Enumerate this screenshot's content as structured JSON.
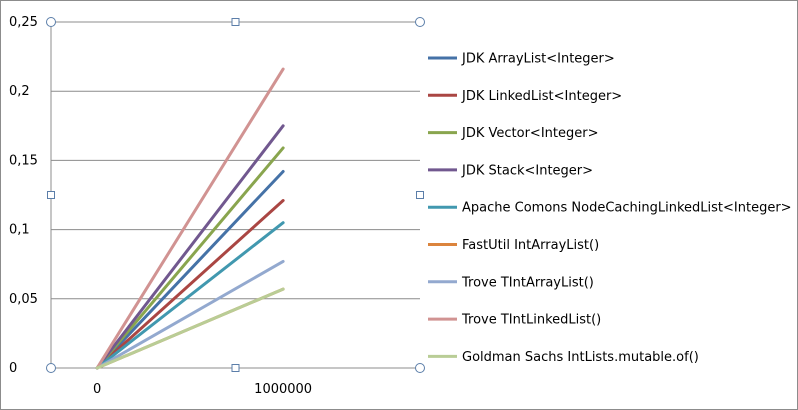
{
  "chart_data": {
    "type": "line",
    "title": "",
    "xlabel": "",
    "ylabel": "",
    "categories": [
      "0",
      "1000000"
    ],
    "ylim": [
      0,
      0.25
    ],
    "yticks": [
      0,
      0.05,
      0.1,
      0.15,
      0.2,
      0.25
    ],
    "ytick_labels": [
      "0",
      "0,05",
      "0,1",
      "0,15",
      "0,2",
      "0,25"
    ],
    "grid": true,
    "legend_position": "right",
    "series": [
      {
        "name": "JDK ArrayList<Integer>",
        "color": "#4572A7",
        "values": [
          0,
          0.142
        ]
      },
      {
        "name": "JDK LinkedList<Integer>",
        "color": "#AA4643",
        "values": [
          0,
          0.121
        ]
      },
      {
        "name": "JDK Vector<Integer>",
        "color": "#89A54E",
        "values": [
          0,
          0.159
        ]
      },
      {
        "name": "JDK Stack<Integer>",
        "color": "#71588F",
        "values": [
          0,
          0.175
        ]
      },
      {
        "name": "Apache Comons NodeCachingLinkedList<Integer>",
        "color": "#4198AF",
        "values": [
          0,
          0.105
        ]
      },
      {
        "name": "FastUtil IntArrayList()",
        "color": "#DB843D",
        "values": [
          0,
          0.057
        ]
      },
      {
        "name": "Trove TIntArrayList()",
        "color": "#93A9CF",
        "values": [
          0,
          0.077
        ]
      },
      {
        "name": "Trove TIntLinkedList()",
        "color": "#D19392",
        "values": [
          0,
          0.216
        ]
      },
      {
        "name": "Goldman Sachs IntLists.mutable.of()",
        "color": "#B9CD96",
        "values": [
          0,
          0.057
        ]
      }
    ]
  }
}
